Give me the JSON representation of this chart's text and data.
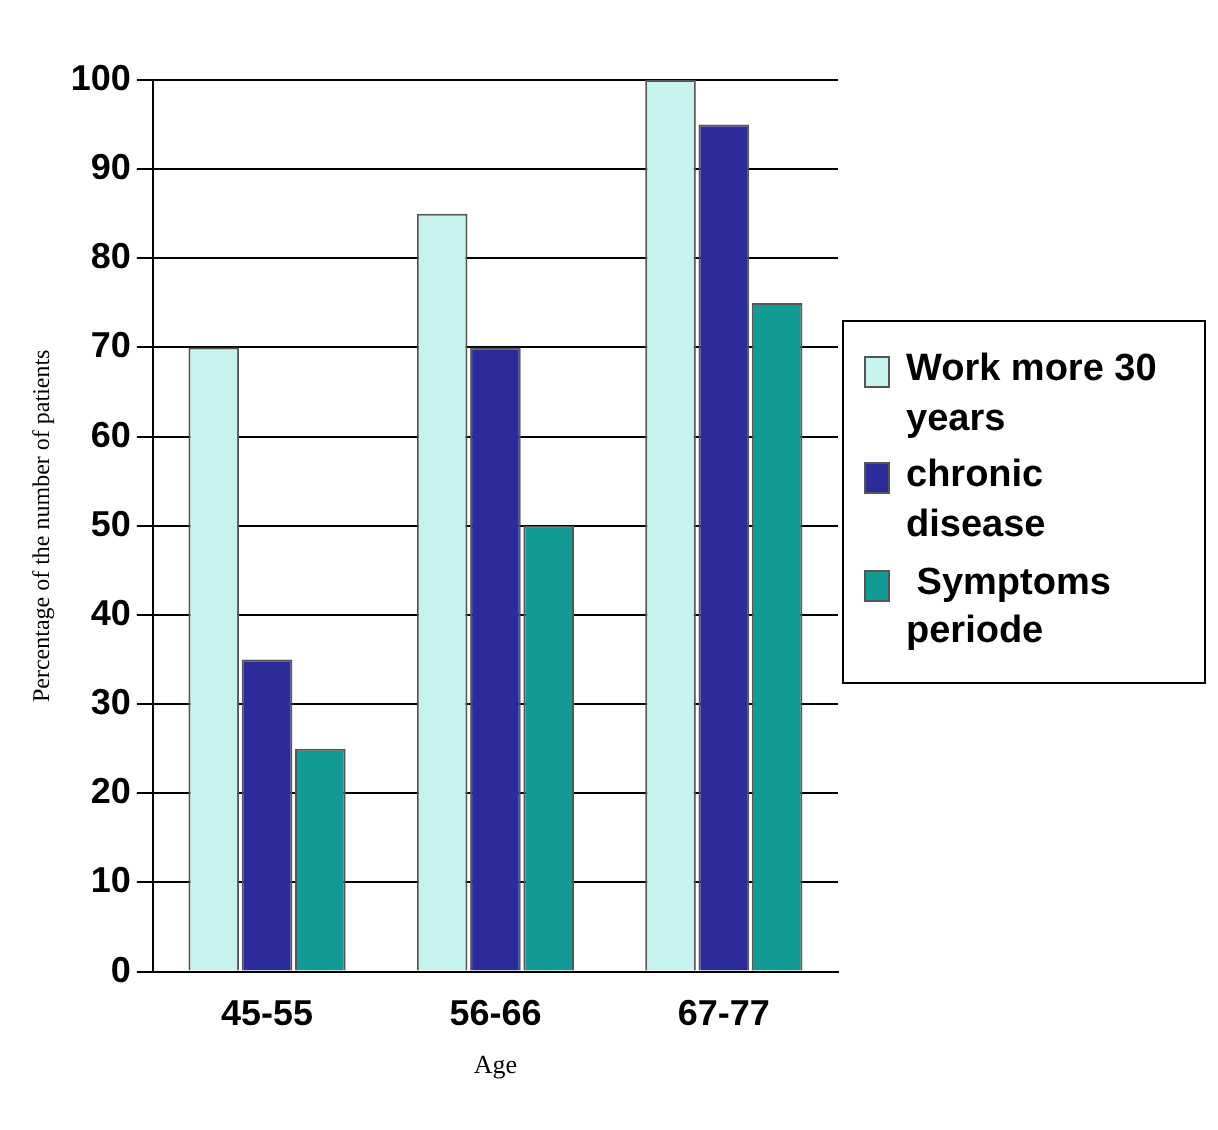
{
  "chart_data": {
    "type": "bar",
    "xlabel": "Age",
    "ylabel": "Percentage of the number of patients",
    "categories": [
      "45-55",
      "56-66",
      "67-77"
    ],
    "series": [
      {
        "name": "Work more 30 years",
        "color": "#c6f2f0",
        "values": [
          70,
          85,
          100
        ]
      },
      {
        "name": "chronic disease",
        "color": "#2b2b9c",
        "values": [
          35,
          70,
          95
        ]
      },
      {
        "name": " Symptoms periode",
        "color": "#139a94",
        "values": [
          25,
          50,
          75
        ]
      }
    ],
    "ylim": [
      0,
      100
    ],
    "yticks": [
      0,
      10,
      20,
      30,
      40,
      50,
      60,
      70,
      80,
      90,
      100
    ],
    "grid": "y",
    "legend": "right"
  }
}
